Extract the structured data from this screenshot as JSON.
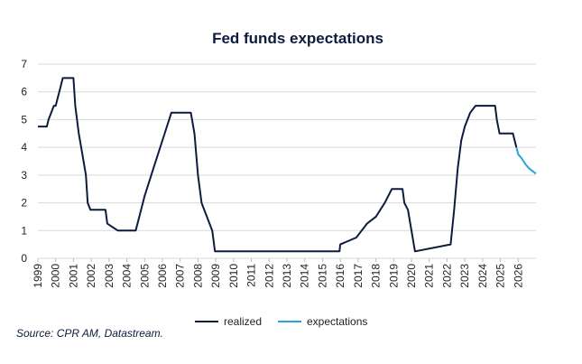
{
  "chart_data": {
    "type": "line",
    "title": "Fed funds expectations",
    "source": "Source: CPR AM, Datastream.",
    "xlim": [
      1999,
      2027
    ],
    "xticks": [
      1999,
      2000,
      2001,
      2002,
      2003,
      2004,
      2005,
      2006,
      2007,
      2008,
      2009,
      2010,
      2011,
      2012,
      2013,
      2014,
      2015,
      2016,
      2017,
      2018,
      2019,
      2020,
      2021,
      2022,
      2023,
      2024,
      2025,
      2026
    ],
    "ylim": [
      0,
      7
    ],
    "yticks": [
      0,
      1,
      2,
      3,
      4,
      5,
      6,
      7
    ],
    "grid": true,
    "series": [
      {
        "name": "realized",
        "color": "#0d1b3e",
        "x": [
          1999.0,
          1999.5,
          1999.6,
          1999.9,
          2000.0,
          2000.2,
          2000.4,
          2001.0,
          2001.1,
          2001.3,
          2001.5,
          2001.7,
          2001.8,
          2001.95,
          2002.8,
          2002.9,
          2003.5,
          2004.5,
          2004.7,
          2005.0,
          2005.5,
          2006.0,
          2006.5,
          2007.6,
          2007.8,
          2008.0,
          2008.2,
          2008.8,
          2008.95,
          2015.95,
          2016.0,
          2016.9,
          2017.2,
          2017.5,
          2018.0,
          2018.5,
          2018.9,
          2019.5,
          2019.6,
          2019.8,
          2020.2,
          2022.2,
          2022.4,
          2022.6,
          2022.8,
          2023.0,
          2023.3,
          2023.6,
          2024.7,
          2024.8,
          2024.95,
          2025.7,
          2025.9
        ],
        "values": [
          4.75,
          4.75,
          5.0,
          5.5,
          5.5,
          6.0,
          6.5,
          6.5,
          5.5,
          4.5,
          3.75,
          3.0,
          2.0,
          1.75,
          1.75,
          1.25,
          1.0,
          1.0,
          1.5,
          2.25,
          3.25,
          4.25,
          5.25,
          5.25,
          4.5,
          3.0,
          2.0,
          1.0,
          0.25,
          0.25,
          0.5,
          0.75,
          1.0,
          1.25,
          1.5,
          2.0,
          2.5,
          2.5,
          2.0,
          1.75,
          0.25,
          0.5,
          1.75,
          3.25,
          4.25,
          4.75,
          5.25,
          5.5,
          5.5,
          5.0,
          4.5,
          4.5,
          4.0
        ]
      },
      {
        "name": "expectations",
        "color": "#29a3dc",
        "x": [
          2025.9,
          2026.0,
          2026.2,
          2026.4,
          2026.6,
          2026.8,
          2027.0
        ],
        "values": [
          4.0,
          3.75,
          3.6,
          3.4,
          3.25,
          3.15,
          3.05
        ]
      }
    ]
  }
}
